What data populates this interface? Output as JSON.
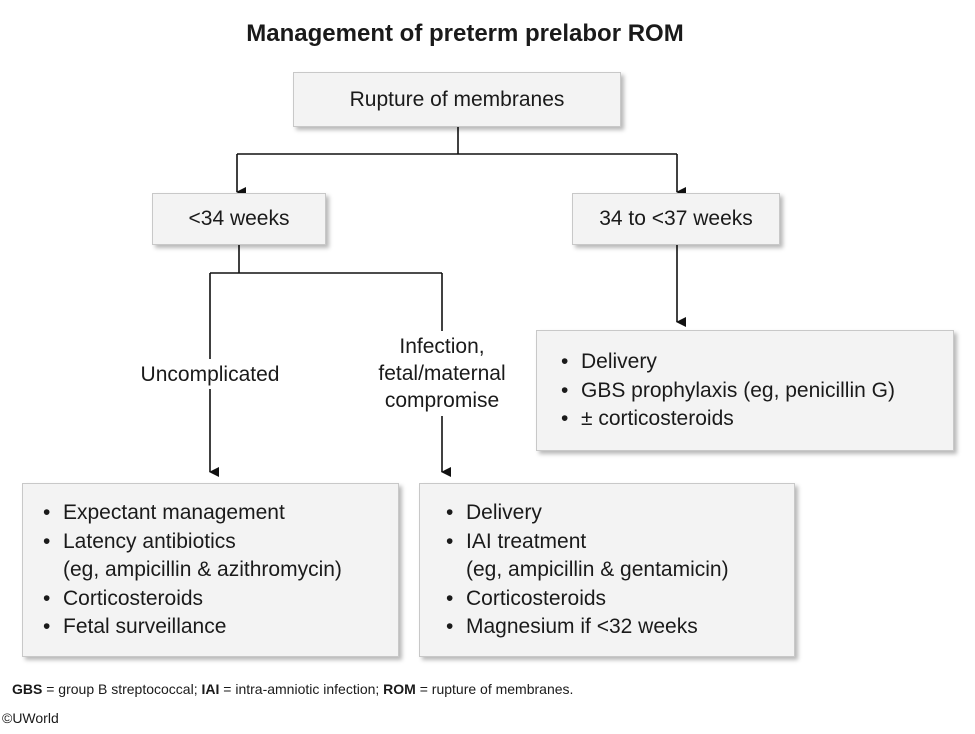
{
  "title": "Management of preterm prelabor ROM",
  "nodes": {
    "root": "Rupture of membranes",
    "lt34": "<34 weeks",
    "late": "34 to <37 weeks"
  },
  "branch_labels": {
    "uncomplicated": "Uncomplicated",
    "infection": [
      "Infection,",
      "fetal/maternal",
      "compromise"
    ]
  },
  "late_management": [
    "Delivery",
    "GBS prophylaxis (eg, penicillin G)",
    "± corticosteroids"
  ],
  "uncomplicated_management": {
    "item1": "Expectant management",
    "item2": "Latency antibiotics",
    "item2_detail": "(eg, ampicillin & azithromycin)",
    "item3": "Corticosteroids",
    "item4": "Fetal surveillance"
  },
  "infection_management": {
    "item1": "Delivery",
    "item2": "IAI treatment",
    "item2_detail": "(eg, ampicillin & gentamicin)",
    "item3": "Corticosteroids",
    "item4": "Magnesium if <32 weeks"
  },
  "footnote": [
    {
      "abbr": "GBS",
      "text": " = group B streptococcal; "
    },
    {
      "abbr": "IAI",
      "text": " = intra-amniotic infection; "
    },
    {
      "abbr": "ROM",
      "text": " = rupture of membranes."
    }
  ],
  "copyright": "©UWorld"
}
